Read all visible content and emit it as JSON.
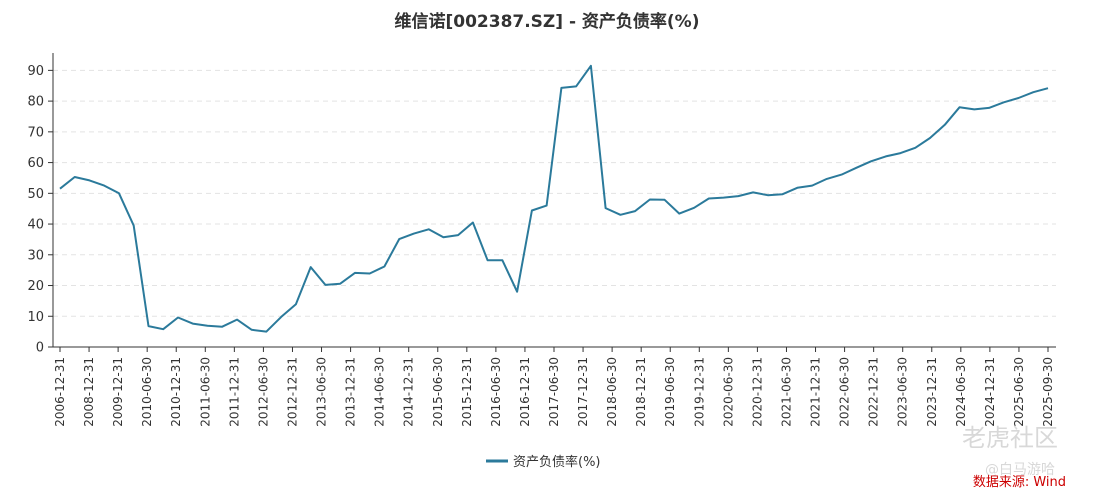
{
  "chart_data": {
    "type": "line",
    "title": "维信诺[002387.SZ] - 资产负债率(%)",
    "ylim": [
      0,
      95
    ],
    "yticks": [
      0,
      10,
      20,
      30,
      40,
      50,
      60,
      70,
      80,
      90
    ],
    "grid": true,
    "legend_position": "bottom-center",
    "x_tick_labels": [
      "2006-12-31",
      "2008-12-31",
      "2009-12-31",
      "2010-06-30",
      "2010-12-31",
      "2011-06-30",
      "2011-12-31",
      "2012-06-30",
      "2012-12-31",
      "2013-06-30",
      "2013-12-31",
      "2014-06-30",
      "2014-12-31",
      "2015-06-30",
      "2015-12-31",
      "2016-06-30",
      "2016-12-31",
      "2017-06-30",
      "2017-12-31",
      "2018-06-30",
      "2018-12-31",
      "2019-06-30",
      "2019-12-31",
      "2020-06-30",
      "2020-12-31",
      "2021-06-30",
      "2021-12-31",
      "2022-06-30",
      "2022-12-31",
      "2023-06-30",
      "2023-12-31",
      "2024-06-30",
      "2024-12-31",
      "2025-06-30",
      "2025-09-30"
    ],
    "series": [
      {
        "name": "资产负债率(%)",
        "color": "#2b7a9b",
        "values": [
          51.5,
          55.3,
          54.2,
          52.5,
          50.0,
          39.5,
          6.8,
          5.8,
          9.6,
          7.6,
          6.9,
          6.6,
          8.9,
          5.6,
          5.0,
          9.8,
          13.9,
          26.0,
          20.2,
          20.6,
          24.1,
          23.9,
          26.2,
          35.1,
          36.9,
          38.3,
          35.7,
          36.4,
          40.5,
          28.2,
          28.2,
          18.0,
          44.4,
          46.0,
          84.3,
          84.8,
          91.5,
          45.2,
          43.0,
          44.2,
          48.0,
          47.9,
          43.4,
          45.3,
          48.3,
          48.6,
          49.1,
          50.3,
          49.4,
          49.7,
          51.8,
          52.5,
          54.7,
          56.1,
          58.3,
          60.4,
          62.0,
          63.1,
          64.8,
          68.0,
          72.3,
          78.0,
          77.3,
          77.8,
          79.6,
          81.0,
          82.9,
          84.2
        ]
      }
    ]
  },
  "legend": {
    "label": "资产负债率(%)"
  },
  "source": "数据来源: Wind",
  "watermark": {
    "text": "老虎社区",
    "handle": "@白马游哈"
  }
}
